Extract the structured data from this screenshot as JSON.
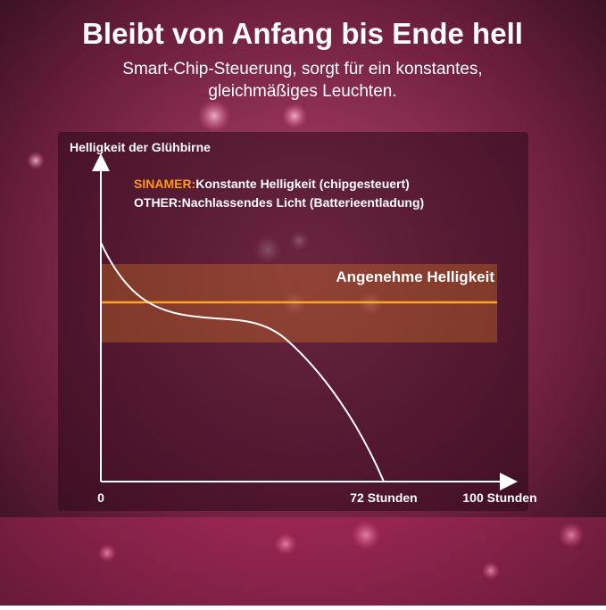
{
  "header": {
    "title": "Bleibt von Anfang bis Ende hell",
    "subtitle_lines": [
      "Smart-Chip-Steuerung, sorgt für ein konstantes,",
      "gleichmäßiges Leuchten."
    ]
  },
  "graph": {
    "y_axis_label": "Helligkeit der Glühbirne",
    "legend": [
      {
        "brand": "SINAMER:",
        "text": "Konstante Helligkeit (chipgesteuert)"
      },
      {
        "brand": "OTHER:",
        "text": "Nachlassendes Licht (Batterieentladung)"
      }
    ],
    "band_label": "Angenehme Helligkeit",
    "x_labels": [
      "0",
      "72 Stunden",
      "100 Stunden"
    ]
  }
}
